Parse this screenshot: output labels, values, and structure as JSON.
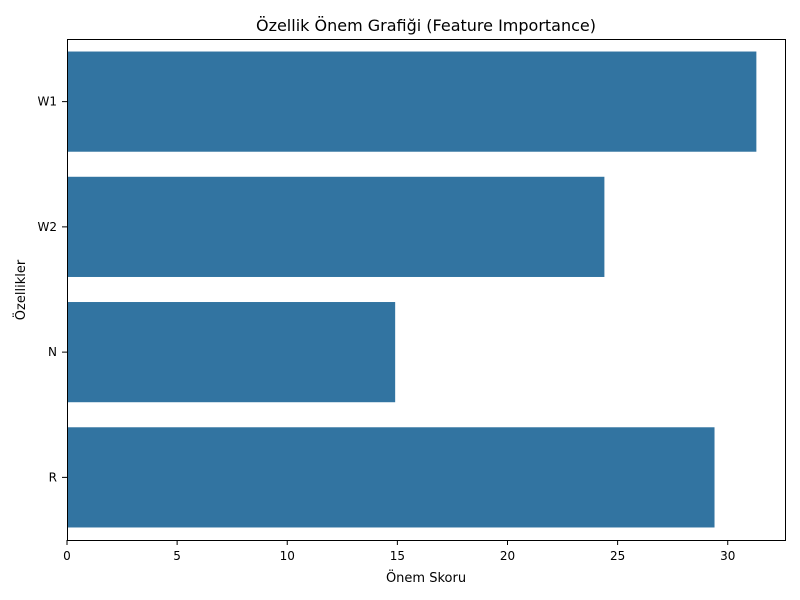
{
  "chart_data": {
    "type": "bar",
    "orientation": "horizontal",
    "title": "Özellik Önem Grafiği (Feature Importance)",
    "xlabel": "Önem Skoru",
    "ylabel": "Özellikler",
    "categories": [
      "W1",
      "W2",
      "N",
      "R"
    ],
    "values": [
      31.3,
      24.4,
      14.9,
      29.4
    ],
    "xlim": [
      0,
      32.6
    ],
    "xticks": [
      0,
      5,
      10,
      15,
      20,
      25,
      30
    ],
    "bar_color": "#3274a1",
    "grid": false,
    "legend": "none"
  }
}
